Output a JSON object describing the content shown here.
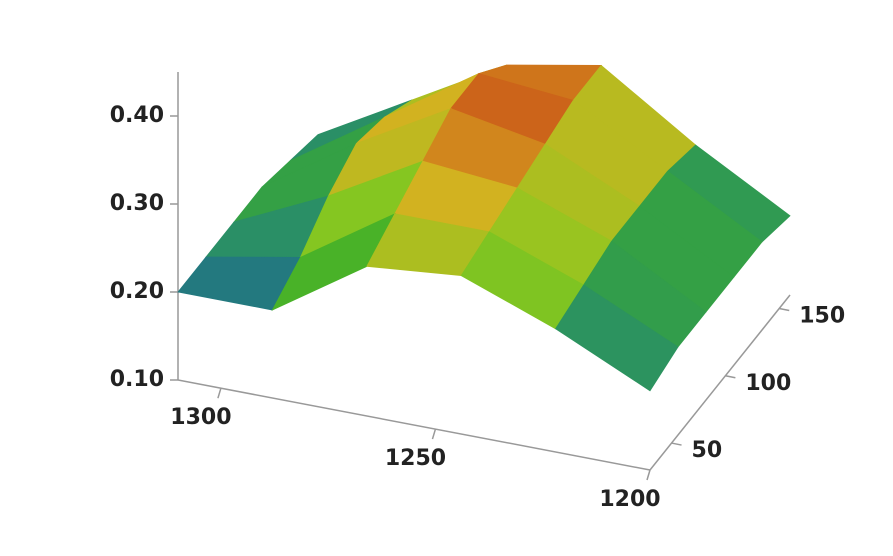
{
  "chart_data": {
    "type": "surface",
    "x": [
      1310,
      1288,
      1266,
      1244,
      1222,
      1200
    ],
    "y": [
      30,
      56,
      82,
      108,
      134,
      160
    ],
    "z": [
      [
        0.2,
        0.2,
        0.27,
        0.28,
        0.24,
        0.19
      ],
      [
        0.2,
        0.22,
        0.29,
        0.29,
        0.25,
        0.2
      ],
      [
        0.2,
        0.25,
        0.31,
        0.3,
        0.26,
        0.2
      ],
      [
        0.2,
        0.27,
        0.33,
        0.31,
        0.26,
        0.2
      ],
      [
        0.19,
        0.26,
        0.33,
        0.32,
        0.26,
        0.2
      ],
      [
        0.18,
        0.24,
        0.3,
        0.32,
        0.25,
        0.19
      ]
    ],
    "xlim": [
      1310,
      1200
    ],
    "xticks": [
      1300,
      1250,
      1200
    ],
    "ylim": [
      30,
      160
    ],
    "yticks": [
      50,
      100,
      150
    ],
    "zlim": [
      0.1,
      0.45
    ],
    "zticks": [
      {
        "value": 0.1,
        "label": "0.10"
      },
      {
        "value": 0.2,
        "label": "0.20"
      },
      {
        "value": 0.3,
        "label": "0.30"
      },
      {
        "value": 0.4,
        "label": "0.40"
      }
    ],
    "colormap": [
      "#1d3f9a",
      "#24857a",
      "#3cae2a",
      "#8cc820",
      "#d8b020",
      "#c84a18"
    ]
  }
}
